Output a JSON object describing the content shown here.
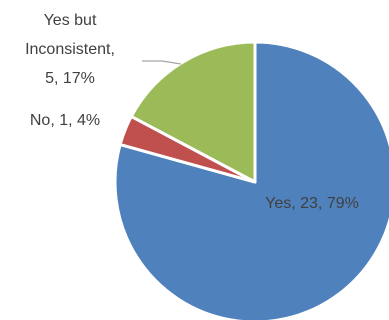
{
  "chart_data": {
    "type": "pie",
    "start_angle_deg": 0,
    "direction": "clockwise",
    "slices": [
      {
        "label": "Yes",
        "value": 23,
        "percent": 79,
        "color": "#4f81bd"
      },
      {
        "label": "No",
        "value": 1,
        "percent": 4,
        "color": "#c0504d"
      },
      {
        "label": "Yes but Inconsistent",
        "value": 5,
        "percent": 17,
        "color": "#9bbb59"
      }
    ],
    "data_labels": {
      "yes": "Yes, 23, 79%",
      "no": "No, 1, 4%",
      "inconsistent_line1": "Yes but",
      "inconsistent_line2": "Inconsistent,",
      "inconsistent_line3": "5, 17%"
    },
    "legend": "none"
  }
}
